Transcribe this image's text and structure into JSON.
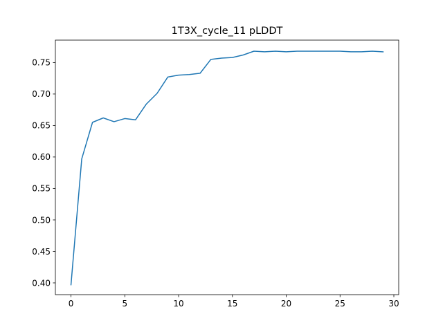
{
  "chart_data": {
    "type": "line",
    "title": "1T3X_cycle_11 pLDDT",
    "xlabel": "",
    "ylabel": "",
    "xlim": [
      -1.45,
      30.45
    ],
    "ylim": [
      0.3813,
      0.7856
    ],
    "xticks": [
      0,
      5,
      10,
      15,
      20,
      25,
      30
    ],
    "xtick_labels": [
      "0",
      "5",
      "10",
      "15",
      "20",
      "25",
      "30"
    ],
    "yticks": [
      0.4,
      0.45,
      0.5,
      0.55,
      0.6,
      0.65,
      0.7,
      0.75
    ],
    "ytick_labels": [
      "0.40",
      "0.45",
      "0.50",
      "0.55",
      "0.60",
      "0.65",
      "0.70",
      "0.75"
    ],
    "grid": false,
    "legend": "none",
    "series": [
      {
        "color": "#1f77b4",
        "x": [
          0,
          1,
          2,
          3,
          4,
          5,
          6,
          7,
          8,
          9,
          10,
          11,
          12,
          13,
          14,
          15,
          16,
          17,
          18,
          19,
          20,
          21,
          22,
          23,
          24,
          25,
          26,
          27,
          28,
          29
        ],
        "values": [
          0.397,
          0.597,
          0.655,
          0.662,
          0.656,
          0.661,
          0.659,
          0.684,
          0.701,
          0.727,
          0.73,
          0.731,
          0.733,
          0.755,
          0.757,
          0.758,
          0.762,
          0.768,
          0.767,
          0.768,
          0.767,
          0.768,
          0.768,
          0.768,
          0.768,
          0.768,
          0.767,
          0.767,
          0.768,
          0.767
        ]
      }
    ]
  }
}
